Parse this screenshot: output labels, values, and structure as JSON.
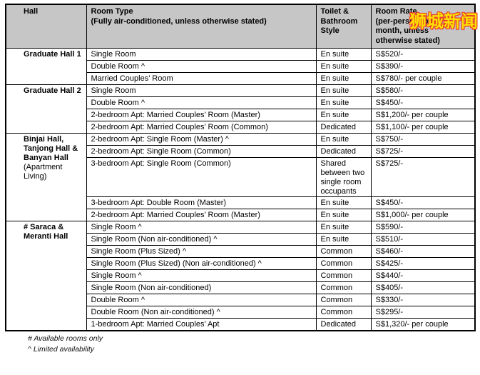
{
  "watermark": {
    "text": "狮城新闻",
    "fill_color": "#ffdf00",
    "outline_color": "#e8362a"
  },
  "table": {
    "columns": [
      {
        "id": "hall",
        "title": "Hall",
        "sub": ""
      },
      {
        "id": "room-type",
        "title": "Room Type",
        "sub": "(Fully air-conditioned, unless otherwise stated)"
      },
      {
        "id": "toilet-bathroom-style",
        "title": "Toilet &\nBathroom\nStyle",
        "sub": ""
      },
      {
        "id": "room-rate",
        "title": "Room Rate",
        "sub": "(per-person, per\nmonth, unless\notherwise stated)"
      }
    ],
    "sections": [
      {
        "hall": "Graduate Hall 1",
        "note": "",
        "rows": [
          [
            "Single Room",
            "En suite",
            "S$520/-"
          ],
          [
            "Double Room ^",
            "En suite",
            "S$390/-"
          ],
          [
            "Married Couples’ Room",
            "En suite",
            "S$780/- per couple"
          ]
        ]
      },
      {
        "hall": "Graduate Hall 2",
        "note": "",
        "rows": [
          [
            "Single Room",
            "En suite",
            "S$580/-"
          ],
          [
            "Double Room ^",
            "En suite",
            "S$450/-"
          ],
          [
            "2-bedroom Apt: Married Couples’ Room (Master)",
            "En suite",
            "S$1,200/- per couple"
          ],
          [
            "2-bedroom Apt: Married Couples’ Room (Common)",
            "Dedicated",
            "S$1,100/- per couple"
          ]
        ]
      },
      {
        "hall": "Binjai Hall, Tanjong Hall & Banyan Hall",
        "note": "(Apartment Living)",
        "rows": [
          [
            "2-bedroom Apt: Single Room (Master) ^",
            "En suite",
            "S$750/-"
          ],
          [
            "2-bedroom Apt: Single Room (Common)",
            "Dedicated",
            "S$725/-"
          ],
          [
            "3-bedroom Apt: Single Room (Common)",
            "Shared between two single room occupants",
            "S$725/-"
          ],
          [
            "3-bedroom Apt: Double Room (Master)",
            "En suite",
            "S$450/-"
          ],
          [
            "2-bedroom Apt: Married Couples’ Room (Master)",
            "En suite",
            "S$1,000/- per couple"
          ]
        ]
      },
      {
        "hall": "# Saraca & Meranti Hall",
        "note": "",
        "rows": [
          [
            "Single Room ^",
            "En suite",
            "S$590/-"
          ],
          [
            "Single Room (Non air-conditioned) ^",
            "En suite",
            "S$510/-"
          ],
          [
            "Single Room (Plus Sized) ^",
            "Common",
            "S$460/-"
          ],
          [
            "Single Room (Plus Sized) (Non air-conditioned) ^",
            "Common",
            "S$425/-"
          ],
          [
            "Single Room ^",
            "Common",
            "S$440/-"
          ],
          [
            "Single Room (Non air-conditioned)",
            "Common",
            "S$405/-"
          ],
          [
            "Double Room ^",
            "Common",
            "S$330/-"
          ],
          [
            "Double Room (Non air-conditioned) ^",
            "Common",
            "S$295/-"
          ],
          [
            "1-bedroom Apt: Married Couples’ Apt",
            "Dedicated",
            "S$1,320/- per couple"
          ]
        ]
      }
    ],
    "footnotes": [
      "# Available rooms only",
      "^ Limited availability"
    ]
  }
}
